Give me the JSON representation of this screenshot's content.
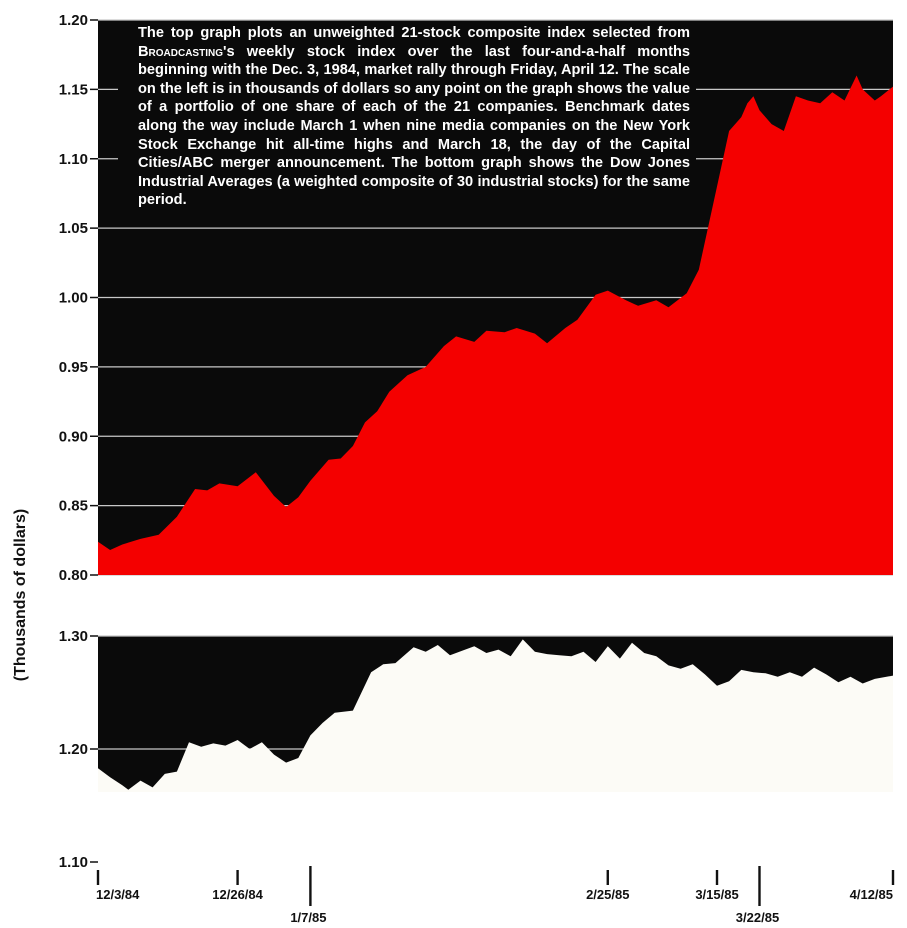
{
  "annotation": {
    "text_before": "The top graph plots an unweighted 21-stock composite index selected from ",
    "publication": "Broadcasting",
    "text_after": "'s weekly stock index over the last four-and-a-half months beginning with the Dec. 3, 1984, market rally through Friday, April 12. The scale on the left is in thousands of dollars so any point on the graph shows the value of a portfolio of one share of each of the 21 companies. Benchmark dates along the way include March 1 when nine media companies on the New York Stock Exchange hit all-time highs and March 18, the day of the Capital Cities/ABC merger announcement. The bottom graph shows the Dow Jones Industrial Averages (a weighted composite of 30 industrial stocks) for the same period."
  },
  "colors": {
    "background": "#0a0a0a",
    "top_fill": "#f40000",
    "bottom_fill": "#fcfbf6",
    "gridline": "#c8c8c8"
  },
  "chart_data": [
    {
      "type": "area",
      "xlabel": "",
      "ylabel": "(Thousands of dollars)",
      "ylim": [
        0.8,
        1.2
      ],
      "xlim": [
        0,
        131
      ],
      "yticks": [
        {
          "value": 0.8,
          "label": "0.80"
        },
        {
          "value": 0.85,
          "label": "0.85"
        },
        {
          "value": 0.9,
          "label": "0.90"
        },
        {
          "value": 0.95,
          "label": "0.95"
        },
        {
          "value": 1.0,
          "label": "1.00"
        },
        {
          "value": 1.05,
          "label": "1.05"
        },
        {
          "value": 1.1,
          "label": "1.10"
        },
        {
          "value": 1.15,
          "label": "1.15"
        },
        {
          "value": 1.2,
          "label": "1.20"
        }
      ],
      "grid": true,
      "x_unit": "days since 12/3/84",
      "x": [
        0,
        2,
        4,
        7,
        10,
        13,
        16,
        18,
        20,
        23,
        26,
        29,
        31,
        33,
        35,
        38,
        40,
        42,
        44,
        46,
        48,
        51,
        54,
        57,
        59,
        62,
        64,
        67,
        69,
        72,
        74,
        77,
        79,
        82,
        84,
        87,
        89,
        92,
        94,
        97,
        99,
        102,
        104,
        106,
        107,
        108,
        109,
        111,
        113,
        115,
        117,
        119,
        121,
        123,
        125,
        126,
        128,
        129,
        131
      ],
      "values": [
        0.824,
        0.818,
        0.822,
        0.826,
        0.829,
        0.842,
        0.862,
        0.861,
        0.866,
        0.864,
        0.874,
        0.857,
        0.849,
        0.856,
        0.868,
        0.883,
        0.884,
        0.893,
        0.91,
        0.918,
        0.932,
        0.944,
        0.95,
        0.965,
        0.972,
        0.968,
        0.976,
        0.975,
        0.978,
        0.974,
        0.967,
        0.978,
        0.984,
        1.002,
        1.005,
        0.998,
        0.994,
        0.998,
        0.993,
        1.003,
        1.02,
        1.08,
        1.12,
        1.13,
        1.14,
        1.145,
        1.135,
        1.125,
        1.12,
        1.145,
        1.142,
        1.14,
        1.148,
        1.142,
        1.16,
        1.15,
        1.142,
        1.145,
        1.152
      ]
    },
    {
      "type": "area",
      "xlabel": "",
      "ylabel": "",
      "ylim": [
        1.1,
        1.3
      ],
      "xlim": [
        0,
        131
      ],
      "yticks": [
        {
          "value": 1.1,
          "label": "1.10"
        },
        {
          "value": 1.2,
          "label": "1.20"
        },
        {
          "value": 1.3,
          "label": "1.30"
        }
      ],
      "grid": true,
      "x_unit": "days since 12/3/84",
      "x": [
        0,
        2,
        4,
        5,
        7,
        9,
        11,
        13,
        15,
        17,
        19,
        21,
        23,
        25,
        27,
        29,
        31,
        33,
        35,
        37,
        39,
        42,
        45,
        47,
        49,
        52,
        54,
        56,
        58,
        60,
        62,
        64,
        66,
        68,
        70,
        72,
        74,
        76,
        78,
        80,
        82,
        84,
        86,
        88,
        90,
        92,
        94,
        96,
        98,
        100,
        102,
        104,
        106,
        108,
        110,
        112,
        114,
        116,
        118,
        120,
        122,
        124,
        126,
        128,
        131
      ],
      "values": [
        1.183,
        1.175,
        1.168,
        1.164,
        1.172,
        1.166,
        1.178,
        1.18,
        1.206,
        1.202,
        1.205,
        1.203,
        1.208,
        1.2,
        1.206,
        1.195,
        1.188,
        1.192,
        1.212,
        1.223,
        1.232,
        1.234,
        1.268,
        1.275,
        1.276,
        1.29,
        1.286,
        1.292,
        1.283,
        1.287,
        1.291,
        1.285,
        1.288,
        1.282,
        1.297,
        1.286,
        1.284,
        1.283,
        1.282,
        1.286,
        1.277,
        1.291,
        1.28,
        1.294,
        1.285,
        1.282,
        1.274,
        1.271,
        1.275,
        1.266,
        1.256,
        1.26,
        1.27,
        1.268,
        1.267,
        1.264,
        1.268,
        1.264,
        1.272,
        1.266,
        1.259,
        1.264,
        1.258,
        1.262,
        1.265
      ]
    }
  ],
  "x_axis": {
    "xlim": [
      0,
      131
    ],
    "dates": [
      {
        "x": 0,
        "label": "12/3/84",
        "row": 1
      },
      {
        "x": 23,
        "label": "12/26/84",
        "row": 1
      },
      {
        "x": 35,
        "label": "1/7/85",
        "row": 2
      },
      {
        "x": 84,
        "label": "2/25/85",
        "row": 1
      },
      {
        "x": 102,
        "label": "3/15/85",
        "row": 1
      },
      {
        "x": 109,
        "label": "3/22/85",
        "row": 2
      },
      {
        "x": 131,
        "label": "4/12/85",
        "row": 1
      }
    ]
  }
}
